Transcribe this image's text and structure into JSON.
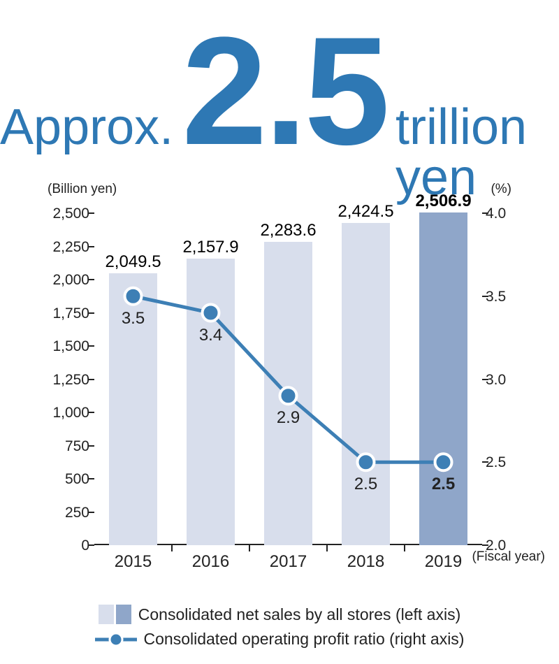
{
  "headline": {
    "prefix": "Approx.",
    "big": "2.5",
    "suffix": "trillion yen",
    "color": "#2e78b4",
    "prefix_fontsize": 72,
    "big_fontsize": 220,
    "suffix_fontsize": 72
  },
  "chart": {
    "type": "bar+line",
    "categories": [
      "2015",
      "2016",
      "2017",
      "2018",
      "2019"
    ],
    "bars": {
      "values": [
        2049.5,
        2157.9,
        2283.6,
        2424.5,
        2506.9
      ],
      "labels": [
        "2,049.5",
        "2,157.9",
        "2,283.6",
        "2,424.5",
        "2,506.9"
      ],
      "colors": [
        "#d8deec",
        "#d8deec",
        "#d8deec",
        "#d8deec",
        "#8fa6c9"
      ],
      "label_bold": [
        false,
        false,
        false,
        false,
        true
      ],
      "bar_width_ratio": 0.62
    },
    "line": {
      "values": [
        3.5,
        3.4,
        2.9,
        2.5,
        2.5
      ],
      "labels": [
        "3.5",
        "3.4",
        "2.9",
        "2.5",
        "2.5"
      ],
      "label_bold": [
        false,
        false,
        false,
        false,
        true
      ],
      "line_color": "#3d7fb5",
      "line_width": 5,
      "marker_fill": "#3d7fb5",
      "marker_stroke": "#ffffff",
      "marker_stroke_width": 4,
      "marker_radius": 12
    },
    "y_left": {
      "title": "(Billion yen)",
      "min": 0,
      "max": 2500,
      "step": 250,
      "ticks": [
        "0",
        "250",
        "500",
        "750",
        "1,000",
        "1,250",
        "1,500",
        "1,750",
        "2,000",
        "2,250",
        "2,500"
      ]
    },
    "y_right": {
      "title": "(%)",
      "min": 2.0,
      "max": 4.0,
      "step": 0.5,
      "ticks": [
        "2.0",
        "2.5",
        "3.0",
        "3.5",
        "4.0"
      ]
    },
    "x_title": "(Fiscal year)",
    "axis_color": "#222222",
    "background_color": "#ffffff",
    "label_fontsize": 24,
    "tick_fontsize": 21,
    "axis_title_fontsize": 19
  },
  "legend": {
    "bars_light": "#d8deec",
    "bars_dark": "#8fa6c9",
    "bars_label": "Consolidated net sales by all stores (left axis)",
    "line_color": "#3d7fb5",
    "line_label": "Consolidated operating profit ratio (right axis)",
    "fontsize": 23
  }
}
